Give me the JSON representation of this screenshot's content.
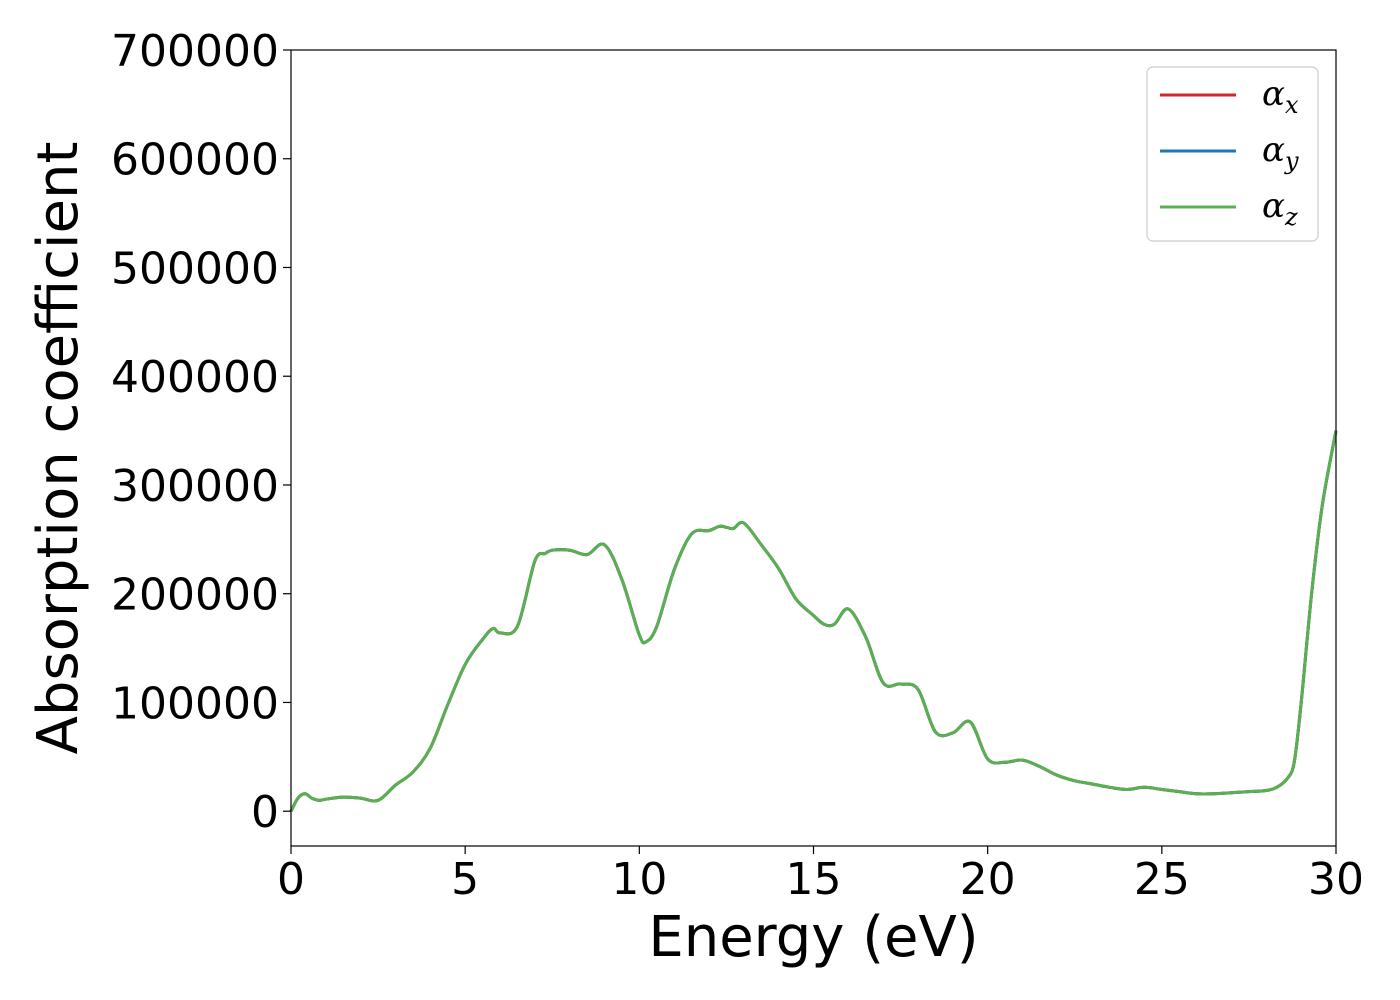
{
  "chart_data": {
    "type": "line",
    "title": "",
    "xlabel": "Energy (eV)",
    "ylabel": "Absorption coefficient",
    "xlim": [
      0,
      30
    ],
    "ylim": [
      -32000,
      700000
    ],
    "x_ticks": [
      0,
      5,
      10,
      15,
      20,
      25,
      30
    ],
    "x_tick_labels": [
      "0",
      "5",
      "10",
      "15",
      "20",
      "25",
      "30"
    ],
    "y_ticks": [
      0,
      100000,
      200000,
      300000,
      400000,
      500000,
      600000,
      700000
    ],
    "y_tick_labels": [
      "0",
      "100000",
      "200000",
      "300000",
      "400000",
      "500000",
      "600000",
      "700000"
    ],
    "grid": false,
    "legend_position": "top-right",
    "x": [
      0,
      0.2,
      0.4,
      0.6,
      0.8,
      1.0,
      1.5,
      2.0,
      2.5,
      3.0,
      3.5,
      4.0,
      4.5,
      5.0,
      5.5,
      5.8,
      6.0,
      6.5,
      7.0,
      7.3,
      7.5,
      8.0,
      8.5,
      9.0,
      9.5,
      10.0,
      10.2,
      10.5,
      11.0,
      11.5,
      12.0,
      12.3,
      12.5,
      12.7,
      13.0,
      13.5,
      14.0,
      14.5,
      15.0,
      15.3,
      15.6,
      16.0,
      16.5,
      17.0,
      17.5,
      18.0,
      18.5,
      19.0,
      19.5,
      20.0,
      20.5,
      21.0,
      21.5,
      22.0,
      22.5,
      23.0,
      23.5,
      24.0,
      24.5,
      25.0,
      25.5,
      26.0,
      26.5,
      27.0,
      27.5,
      28.0,
      28.3,
      28.6,
      28.8,
      29.0,
      29.3,
      29.6,
      30.0
    ],
    "series": [
      {
        "name": "α",
        "subscript": "x",
        "color": "#d62728",
        "values": [
          0,
          12000,
          16000,
          12000,
          10000,
          11000,
          13000,
          12000,
          10000,
          24000,
          36000,
          58000,
          98000,
          135000,
          158000,
          168000,
          164000,
          170000,
          230000,
          237000,
          240000,
          240000,
          236000,
          245000,
          213000,
          162000,
          156000,
          170000,
          222000,
          255000,
          258000,
          262000,
          261000,
          260000,
          265000,
          245000,
          223000,
          195000,
          180000,
          172000,
          172000,
          186000,
          160000,
          118000,
          117000,
          112000,
          73000,
          72000,
          82000,
          48000,
          45000,
          47000,
          41000,
          33000,
          28000,
          25000,
          22000,
          20000,
          22000,
          20000,
          18000,
          16000,
          16000,
          17000,
          18000,
          19000,
          22000,
          30000,
          45000,
          100000,
          200000,
          280000,
          350000
        ]
      },
      {
        "name": "α",
        "subscript": "y",
        "color": "#1f77b4",
        "values": [
          0,
          12000,
          16000,
          12000,
          10000,
          11000,
          13000,
          12000,
          10000,
          24000,
          36000,
          58000,
          98000,
          135000,
          158000,
          168000,
          164000,
          170000,
          230000,
          237000,
          240000,
          240000,
          236000,
          245000,
          213000,
          162000,
          156000,
          170000,
          222000,
          255000,
          258000,
          262000,
          261000,
          260000,
          265000,
          245000,
          223000,
          195000,
          180000,
          172000,
          172000,
          186000,
          160000,
          118000,
          117000,
          112000,
          73000,
          72000,
          82000,
          48000,
          45000,
          47000,
          41000,
          33000,
          28000,
          25000,
          22000,
          20000,
          22000,
          20000,
          18000,
          16000,
          16000,
          17000,
          18000,
          19000,
          22000,
          30000,
          45000,
          100000,
          200000,
          280000,
          350000
        ]
      },
      {
        "name": "α",
        "subscript": "z",
        "color": "#5aaf50",
        "values": [
          0,
          12000,
          16000,
          12000,
          10000,
          11000,
          13000,
          12000,
          10000,
          24000,
          36000,
          58000,
          98000,
          135000,
          158000,
          168000,
          164000,
          170000,
          230000,
          237000,
          240000,
          240000,
          236000,
          245000,
          213000,
          162000,
          156000,
          170000,
          222000,
          255000,
          258000,
          262000,
          261000,
          260000,
          265000,
          245000,
          223000,
          195000,
          180000,
          172000,
          172000,
          186000,
          160000,
          118000,
          117000,
          112000,
          73000,
          72000,
          82000,
          48000,
          45000,
          47000,
          41000,
          33000,
          28000,
          25000,
          22000,
          20000,
          22000,
          20000,
          18000,
          16000,
          16000,
          17000,
          18000,
          19000,
          22000,
          30000,
          45000,
          100000,
          200000,
          280000,
          350000
        ]
      }
    ]
  }
}
